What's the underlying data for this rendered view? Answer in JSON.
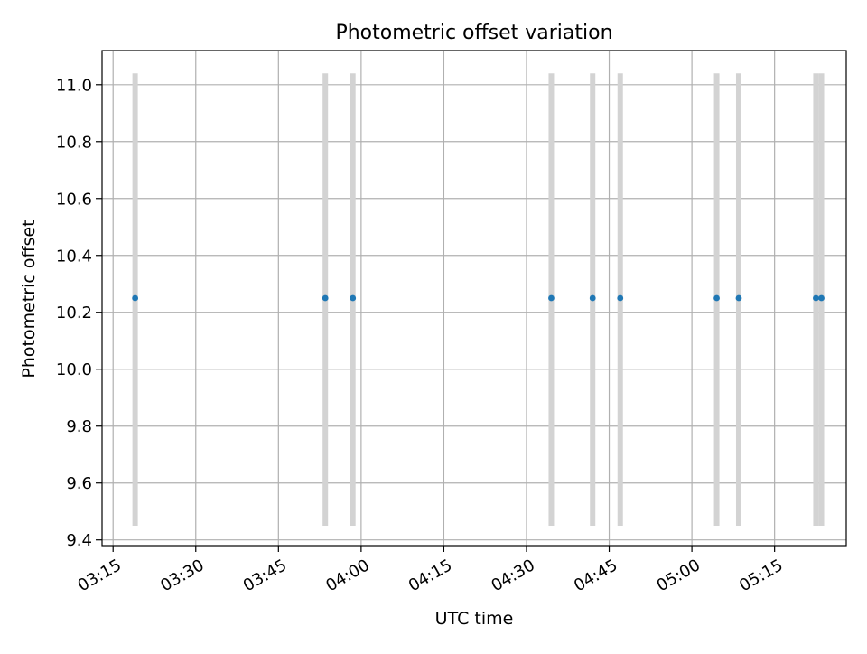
{
  "chart_data": {
    "type": "scatter",
    "title": "Photometric offset variation",
    "xlabel": "UTC time",
    "ylabel": "Photometric offset",
    "xlim": [
      "03:13",
      "05:28"
    ],
    "ylim": [
      9.38,
      11.12
    ],
    "x_ticks": [
      "03:15",
      "03:30",
      "03:45",
      "04:00",
      "04:15",
      "04:30",
      "04:45",
      "05:00",
      "05:15"
    ],
    "y_ticks": [
      9.4,
      9.6,
      9.8,
      10.0,
      10.2,
      10.4,
      10.6,
      10.8,
      11.0
    ],
    "grid": true,
    "series": [
      {
        "x": [
          "03:19",
          "03:53.5",
          "03:58.5",
          "04:34.5",
          "04:42",
          "04:47",
          "05:04.5",
          "05:08.5",
          "05:22.5",
          "05:23.5"
        ],
        "y": [
          10.25,
          10.25,
          10.25,
          10.25,
          10.25,
          10.25,
          10.25,
          10.25,
          10.25,
          10.25
        ],
        "error_low": [
          9.45,
          9.45,
          9.45,
          9.45,
          9.45,
          9.45,
          9.45,
          9.45,
          9.45,
          9.45
        ],
        "error_high": [
          11.04,
          11.04,
          11.04,
          11.04,
          11.04,
          11.04,
          11.04,
          11.04,
          11.04,
          11.04
        ],
        "color": "#1f77b4",
        "errorbar_color": "#d3d3d3"
      }
    ]
  }
}
